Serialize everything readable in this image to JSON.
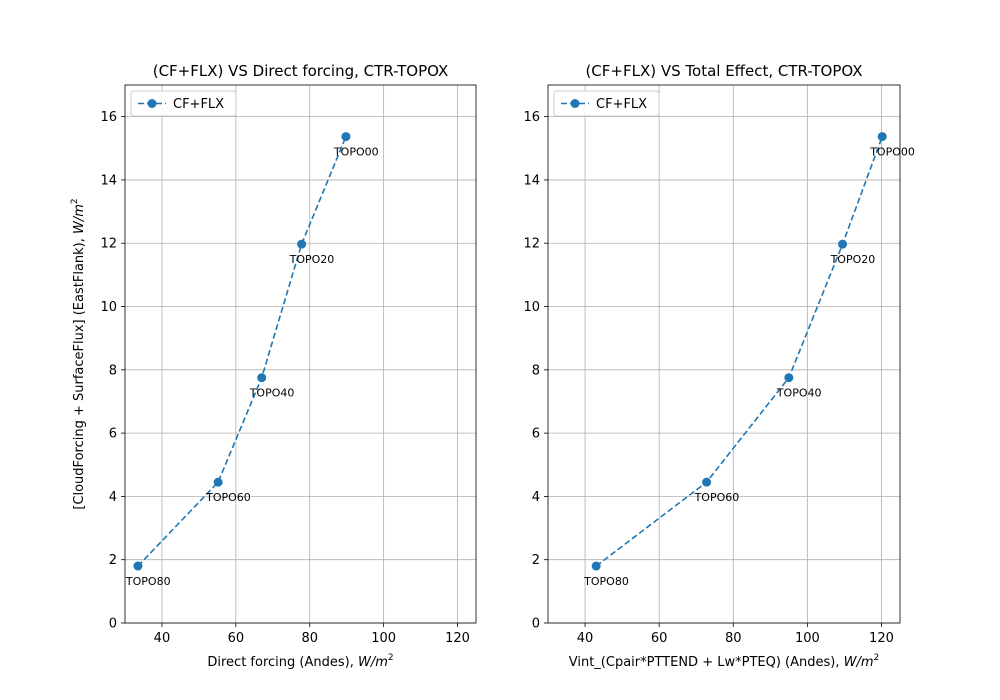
{
  "chart_data": [
    {
      "type": "line",
      "title": "(CF+FLX) VS Direct forcing, CTR-TOPOX",
      "xlabel_text": "Direct forcing (Andes), ",
      "xlabel_unit": "W/m",
      "xlabel_exp": "2",
      "ylabel_text": "[CloudForcing + SurfaceFlux] (EastFlank), ",
      "ylabel_unit": "W/m",
      "ylabel_exp": "2",
      "xlim": [
        30,
        125
      ],
      "ylim": [
        0,
        17
      ],
      "xticks": [
        40,
        60,
        80,
        100,
        120
      ],
      "yticks": [
        0,
        2,
        4,
        6,
        8,
        10,
        12,
        14,
        16
      ],
      "grid": true,
      "legend_position": "upper left",
      "series": [
        {
          "name": "CF+FLX",
          "color": "#1f77b4",
          "linestyle": "dashed",
          "marker": "circle",
          "x": [
            33.5,
            55.2,
            67.0,
            77.8,
            89.8
          ],
          "y": [
            1.8,
            4.45,
            7.75,
            11.97,
            15.37
          ],
          "labels": [
            "TOPO80",
            "TOPO60",
            "TOPO40",
            "TOPO20",
            "TOPO00"
          ]
        }
      ]
    },
    {
      "type": "line",
      "title": "(CF+FLX) VS Total Effect, CTR-TOPOX",
      "xlabel_text": "Vint_(Cpair*PTTEND + Lw*PTEQ) (Andes), ",
      "xlabel_unit": "W/m",
      "xlabel_exp": "2",
      "xlim": [
        30,
        125
      ],
      "ylim": [
        0,
        17
      ],
      "xticks": [
        40,
        60,
        80,
        100,
        120
      ],
      "yticks": [
        0,
        2,
        4,
        6,
        8,
        10,
        12,
        14,
        16
      ],
      "grid": true,
      "legend_position": "upper left",
      "series": [
        {
          "name": "CF+FLX",
          "color": "#1f77b4",
          "linestyle": "dashed",
          "marker": "circle",
          "x": [
            43.0,
            72.8,
            95.0,
            109.5,
            120.2
          ],
          "y": [
            1.8,
            4.45,
            7.75,
            11.97,
            15.37
          ],
          "labels": [
            "TOPO80",
            "TOPO60",
            "TOPO40",
            "TOPO20",
            "TOPO00"
          ]
        }
      ]
    }
  ]
}
